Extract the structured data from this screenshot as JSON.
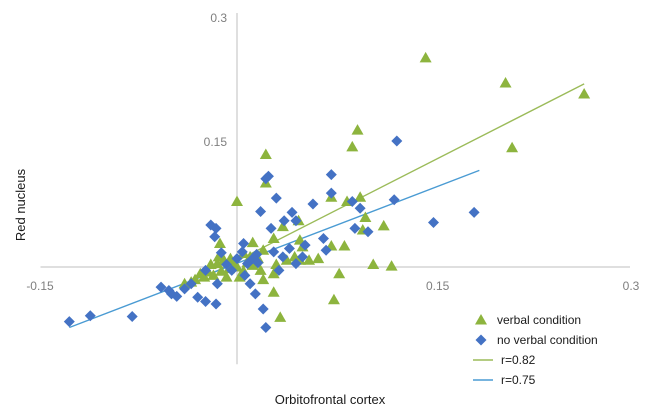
{
  "chart_data": {
    "type": "scatter",
    "title": "",
    "xlabel": "Orbitofrontal cortex",
    "ylabel": "Red nucleus",
    "xlim": [
      -0.15,
      0.3
    ],
    "ylim": [
      -0.08,
      0.3
    ],
    "grid": false,
    "legend_position": "bottom-right",
    "x_tick_labels": [
      "-0.15",
      "0.15",
      "0.3"
    ],
    "y_tick_labels": [
      "0.15",
      "0.3"
    ],
    "series": [
      {
        "name": "verbal condition",
        "marker": "triangle",
        "color": "#8DB43E",
        "points": [
          [
            0.144,
            0.249
          ],
          [
            0.205,
            0.219
          ],
          [
            0.265,
            0.206
          ],
          [
            0.21,
            0.142
          ],
          [
            0.092,
            0.163
          ],
          [
            0.088,
            0.143
          ],
          [
            0.094,
            0.083
          ],
          [
            0.084,
            0.078
          ],
          [
            0.072,
            0.083
          ],
          [
            0.098,
            0.059
          ],
          [
            0.096,
            0.044
          ],
          [
            0.112,
            0.049
          ],
          [
            0.082,
            0.025
          ],
          [
            0.072,
            0.025
          ],
          [
            0.062,
            0.01
          ],
          [
            0.078,
            -0.008
          ],
          [
            0.104,
            0.003
          ],
          [
            0.118,
            0.001
          ],
          [
            0.074,
            -0.039
          ],
          [
            0.033,
            -0.06
          ],
          [
            0.0,
            0.078
          ],
          [
            0.022,
            0.134
          ],
          [
            0.022,
            0.1
          ],
          [
            0.012,
            0.029
          ],
          [
            -0.013,
            0.028
          ],
          [
            0.005,
            0.016
          ],
          [
            0.02,
            0.02
          ],
          [
            0.028,
            0.034
          ],
          [
            0.035,
            0.048
          ],
          [
            0.047,
            0.055
          ],
          [
            0.048,
            0.032
          ],
          [
            0.05,
            0.024
          ],
          [
            0.044,
            0.012
          ],
          [
            0.048,
            0.008
          ],
          [
            0.038,
            0.008
          ],
          [
            0.055,
            0.008
          ],
          [
            0.03,
            0.003
          ],
          [
            0.028,
            -0.008
          ],
          [
            0.028,
            -0.03
          ],
          [
            0.008,
            0.005
          ],
          [
            0.012,
            0.002
          ],
          [
            0.005,
            -0.005
          ],
          [
            -0.002,
            0.005
          ],
          [
            -0.006,
            -0.002
          ],
          [
            -0.01,
            0.008
          ],
          [
            -0.012,
            -0.005
          ],
          [
            -0.015,
            0.004
          ],
          [
            -0.018,
            -0.01
          ],
          [
            -0.02,
            0.003
          ],
          [
            -0.022,
            -0.006
          ],
          [
            -0.025,
            -0.012
          ],
          [
            -0.028,
            -0.008
          ],
          [
            -0.032,
            -0.015
          ],
          [
            -0.035,
            -0.018
          ],
          [
            -0.04,
            -0.02
          ],
          [
            -0.005,
            0.01
          ],
          [
            0.002,
            -0.012
          ],
          [
            0.0,
            0.0
          ],
          [
            0.01,
            0.012
          ],
          [
            0.016,
            0.01
          ],
          [
            0.018,
            -0.004
          ],
          [
            0.02,
            -0.015
          ],
          [
            -0.008,
            -0.012
          ],
          [
            -0.014,
            0.012
          ]
        ]
      },
      {
        "name": "no verbal condition",
        "marker": "diamond",
        "color": "#4472C4",
        "points": [
          [
            -0.128,
            -0.065
          ],
          [
            -0.112,
            -0.058
          ],
          [
            -0.08,
            -0.059
          ],
          [
            -0.058,
            -0.024
          ],
          [
            -0.05,
            -0.032
          ],
          [
            -0.052,
            -0.028
          ],
          [
            -0.04,
            -0.026
          ],
          [
            -0.046,
            -0.035
          ],
          [
            -0.03,
            -0.036
          ],
          [
            -0.024,
            -0.041
          ],
          [
            -0.016,
            -0.044
          ],
          [
            -0.035,
            -0.02
          ],
          [
            -0.02,
            0.05
          ],
          [
            -0.016,
            0.046
          ],
          [
            -0.017,
            0.036
          ],
          [
            -0.012,
            0.017
          ],
          [
            0.005,
            0.028
          ],
          [
            0.022,
            -0.072
          ],
          [
            0.02,
            -0.05
          ],
          [
            0.014,
            -0.032
          ],
          [
            0.022,
            0.105
          ],
          [
            0.024,
            0.108
          ],
          [
            0.03,
            0.082
          ],
          [
            0.018,
            0.066
          ],
          [
            0.026,
            0.046
          ],
          [
            0.036,
            0.055
          ],
          [
            0.042,
            0.065
          ],
          [
            0.045,
            0.055
          ],
          [
            0.058,
            0.075
          ],
          [
            0.072,
            0.088
          ],
          [
            0.072,
            0.11
          ],
          [
            0.094,
            0.07
          ],
          [
            0.088,
            0.078
          ],
          [
            0.09,
            0.046
          ],
          [
            0.1,
            0.042
          ],
          [
            0.12,
            0.08
          ],
          [
            0.122,
            0.15
          ],
          [
            0.15,
            0.053
          ],
          [
            0.181,
            0.065
          ],
          [
            0.052,
            0.026
          ],
          [
            0.066,
            0.034
          ],
          [
            0.068,
            0.02
          ],
          [
            0.04,
            0.022
          ],
          [
            0.028,
            0.018
          ],
          [
            0.035,
            0.012
          ],
          [
            0.015,
            0.015
          ],
          [
            0.05,
            0.012
          ],
          [
            0.045,
            0.004
          ],
          [
            0.032,
            -0.004
          ],
          [
            0.008,
            0.004
          ],
          [
            0.004,
            0.018
          ],
          [
            0.0,
            0.01
          ],
          [
            0.012,
            0.01
          ],
          [
            -0.004,
            -0.004
          ],
          [
            0.006,
            -0.01
          ],
          [
            0.016,
            0.005
          ],
          [
            0.01,
            -0.02
          ],
          [
            -0.024,
            -0.004
          ],
          [
            -0.015,
            -0.02
          ],
          [
            -0.008,
            0.003
          ]
        ]
      }
    ],
    "trendlines": [
      {
        "name": "r=0.82",
        "color": "#9BBB59",
        "from": [
          -0.032,
          -0.018
        ],
        "to": [
          0.265,
          0.218
        ]
      },
      {
        "name": "r=0.75",
        "color": "#4A9BD3",
        "from": [
          -0.128,
          -0.072
        ],
        "to": [
          0.185,
          0.115
        ]
      }
    ]
  }
}
